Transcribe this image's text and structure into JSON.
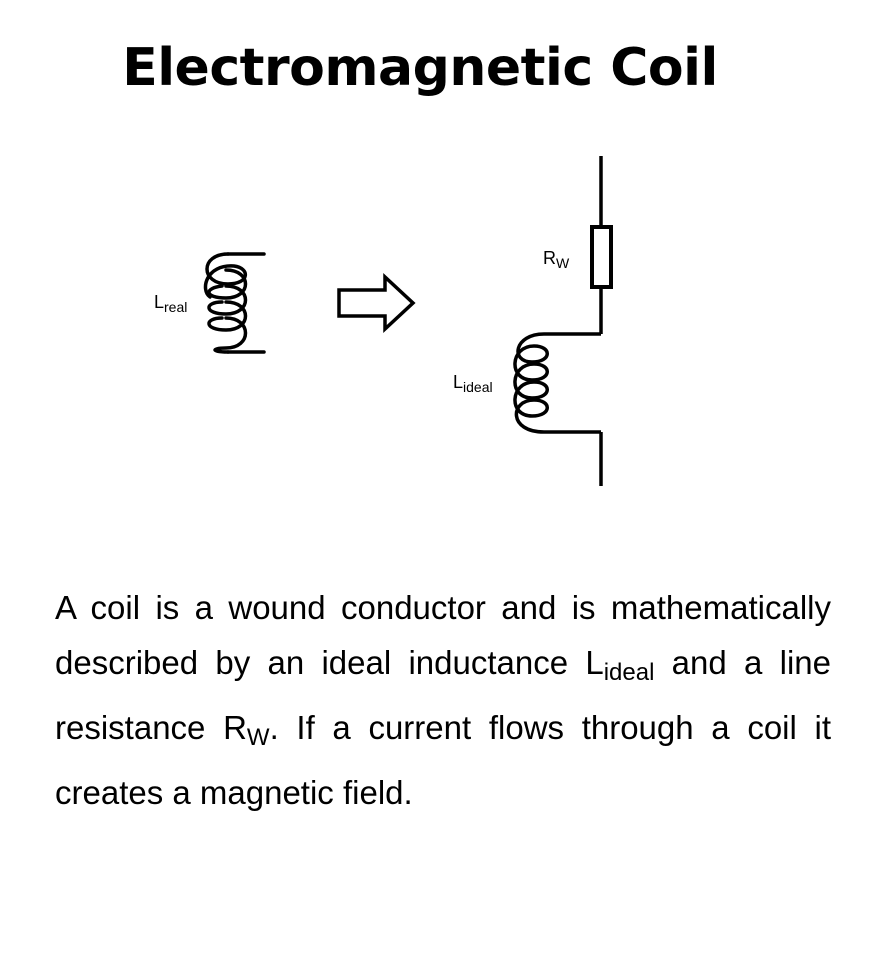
{
  "title": "Electromagnetic Coil",
  "diagram": {
    "left_coil": {
      "symbol": "L",
      "subscript": "real"
    },
    "arrow_icon": "right-hollow-arrow-icon",
    "resistor": {
      "symbol": "R",
      "subscript": "W"
    },
    "ideal_coil": {
      "symbol": "L",
      "subscript": "ideal"
    }
  },
  "description": {
    "part1": "A coil is a wound conductor and is mathematically described by an ideal inductance L",
    "sub1": "ideal",
    "part2": " and a line resistance R",
    "sub2": "W",
    "part3": ". If a current flows through a coil it creates a magnetic field."
  }
}
